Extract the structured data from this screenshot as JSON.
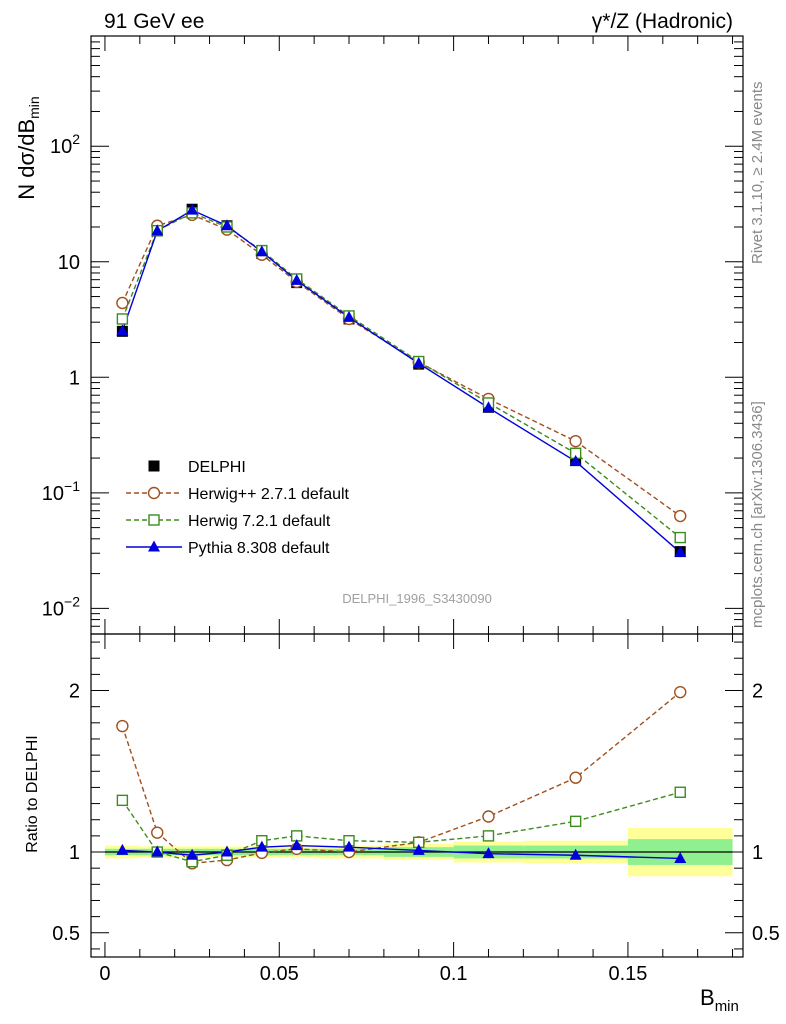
{
  "header": {
    "left": "91 GeV ee",
    "right": "γ*/Z (Hadronic)"
  },
  "side_text": {
    "rivet": "Rivet 3.1.10, ≥ 2.4M events",
    "site": "mcplots.cern.ch [arXiv:1306.3436]"
  },
  "watermark": "DELPHI_1996_S3430090",
  "chart_data": [
    {
      "type": "line",
      "panel": "main",
      "ylabel": "N dσ/dB_min",
      "yscale": "log",
      "ylim": [
        0.006,
        900
      ],
      "xlim": [
        -0.004,
        0.183
      ],
      "yticks": [
        {
          "value": 0.01,
          "base": "10",
          "exp": "−2"
        },
        {
          "value": 0.1,
          "base": "10",
          "exp": "−1"
        },
        {
          "value": 1,
          "base": "1",
          "exp": ""
        },
        {
          "value": 10,
          "base": "10",
          "exp": ""
        },
        {
          "value": 100,
          "base": "10",
          "exp": "2"
        }
      ],
      "legend": {
        "placement": "bottom-left",
        "entries": [
          "DELPHI",
          "Herwig++ 2.7.1 default",
          "Herwig 7.2.1 default",
          "Pythia 8.308 default"
        ]
      },
      "x": [
        0.005,
        0.015,
        0.025,
        0.035,
        0.045,
        0.055,
        0.07,
        0.09,
        0.11,
        0.135,
        0.165
      ],
      "series": [
        {
          "name": "DELPHI",
          "color": "#000000",
          "marker": "square-filled",
          "line": "none",
          "values": [
            2.5,
            18.5,
            28.5,
            20.5,
            11.8,
            6.6,
            3.2,
            1.3,
            0.55,
            0.19,
            0.031
          ]
        },
        {
          "name": "Herwig++ 2.7.1 default",
          "color": "#a0501e",
          "marker": "circle-open",
          "line": "dashed",
          "values": [
            4.4,
            20.5,
            25.5,
            19.0,
            11.5,
            6.7,
            3.2,
            1.35,
            0.65,
            0.28,
            0.063
          ]
        },
        {
          "name": "Herwig 7.2.1 default",
          "color": "#3c8c1e",
          "marker": "square-open",
          "line": "dashed",
          "values": [
            3.2,
            18.6,
            26.5,
            20.0,
            12.5,
            7.1,
            3.4,
            1.37,
            0.6,
            0.22,
            0.041
          ]
        },
        {
          "name": "Pythia 8.308 default",
          "color": "#0000dc",
          "marker": "triangle-filled",
          "line": "solid",
          "values": [
            2.52,
            18.5,
            28.0,
            20.5,
            12.2,
            6.9,
            3.3,
            1.32,
            0.545,
            0.187,
            0.0305
          ]
        }
      ]
    },
    {
      "type": "line",
      "panel": "ratio",
      "ylabel": "Ratio to DELPHI",
      "xlabel": "B_min",
      "ylim": [
        0.35,
        2.35
      ],
      "yticks": [
        0.5,
        1,
        2
      ],
      "ytick_labels": [
        "0.5",
        "1",
        "2"
      ],
      "xticks": [
        0,
        0.05,
        0.1,
        0.15
      ],
      "xtick_labels": [
        "0",
        "0.05",
        "0.1",
        "0.15"
      ],
      "x": [
        0.005,
        0.015,
        0.025,
        0.035,
        0.045,
        0.055,
        0.07,
        0.09,
        0.11,
        0.135,
        0.165
      ],
      "bands": {
        "edges": [
          0.0,
          0.01,
          0.02,
          0.03,
          0.04,
          0.05,
          0.06,
          0.08,
          0.1,
          0.12,
          0.15,
          0.18
        ],
        "inner": [
          0.02,
          0.02,
          0.02,
          0.02,
          0.02,
          0.02,
          0.02,
          0.03,
          0.04,
          0.04,
          0.08
        ],
        "outer": [
          0.04,
          0.035,
          0.035,
          0.035,
          0.035,
          0.035,
          0.04,
          0.05,
          0.065,
          0.07,
          0.15
        ],
        "inner_color": "#90f090",
        "outer_color": "#ffff99"
      },
      "series": [
        {
          "name": "Herwig++ 2.7.1 default",
          "color": "#a0501e",
          "marker": "circle-open",
          "line": "dashed",
          "values": [
            1.78,
            1.12,
            0.93,
            0.95,
            0.995,
            1.02,
            1.0,
            1.06,
            1.22,
            1.46,
            1.99
          ]
        },
        {
          "name": "Herwig 7.2.1 default",
          "color": "#3c8c1e",
          "marker": "square-open",
          "line": "dashed",
          "values": [
            1.32,
            1.0,
            0.94,
            0.98,
            1.07,
            1.1,
            1.07,
            1.06,
            1.1,
            1.19,
            1.37
          ]
        },
        {
          "name": "Pythia 8.308 default",
          "color": "#0000dc",
          "marker": "triangle-filled",
          "line": "solid",
          "values": [
            1.01,
            1.0,
            0.98,
            1.0,
            1.03,
            1.04,
            1.03,
            1.01,
            0.99,
            0.98,
            0.96
          ]
        }
      ]
    }
  ]
}
